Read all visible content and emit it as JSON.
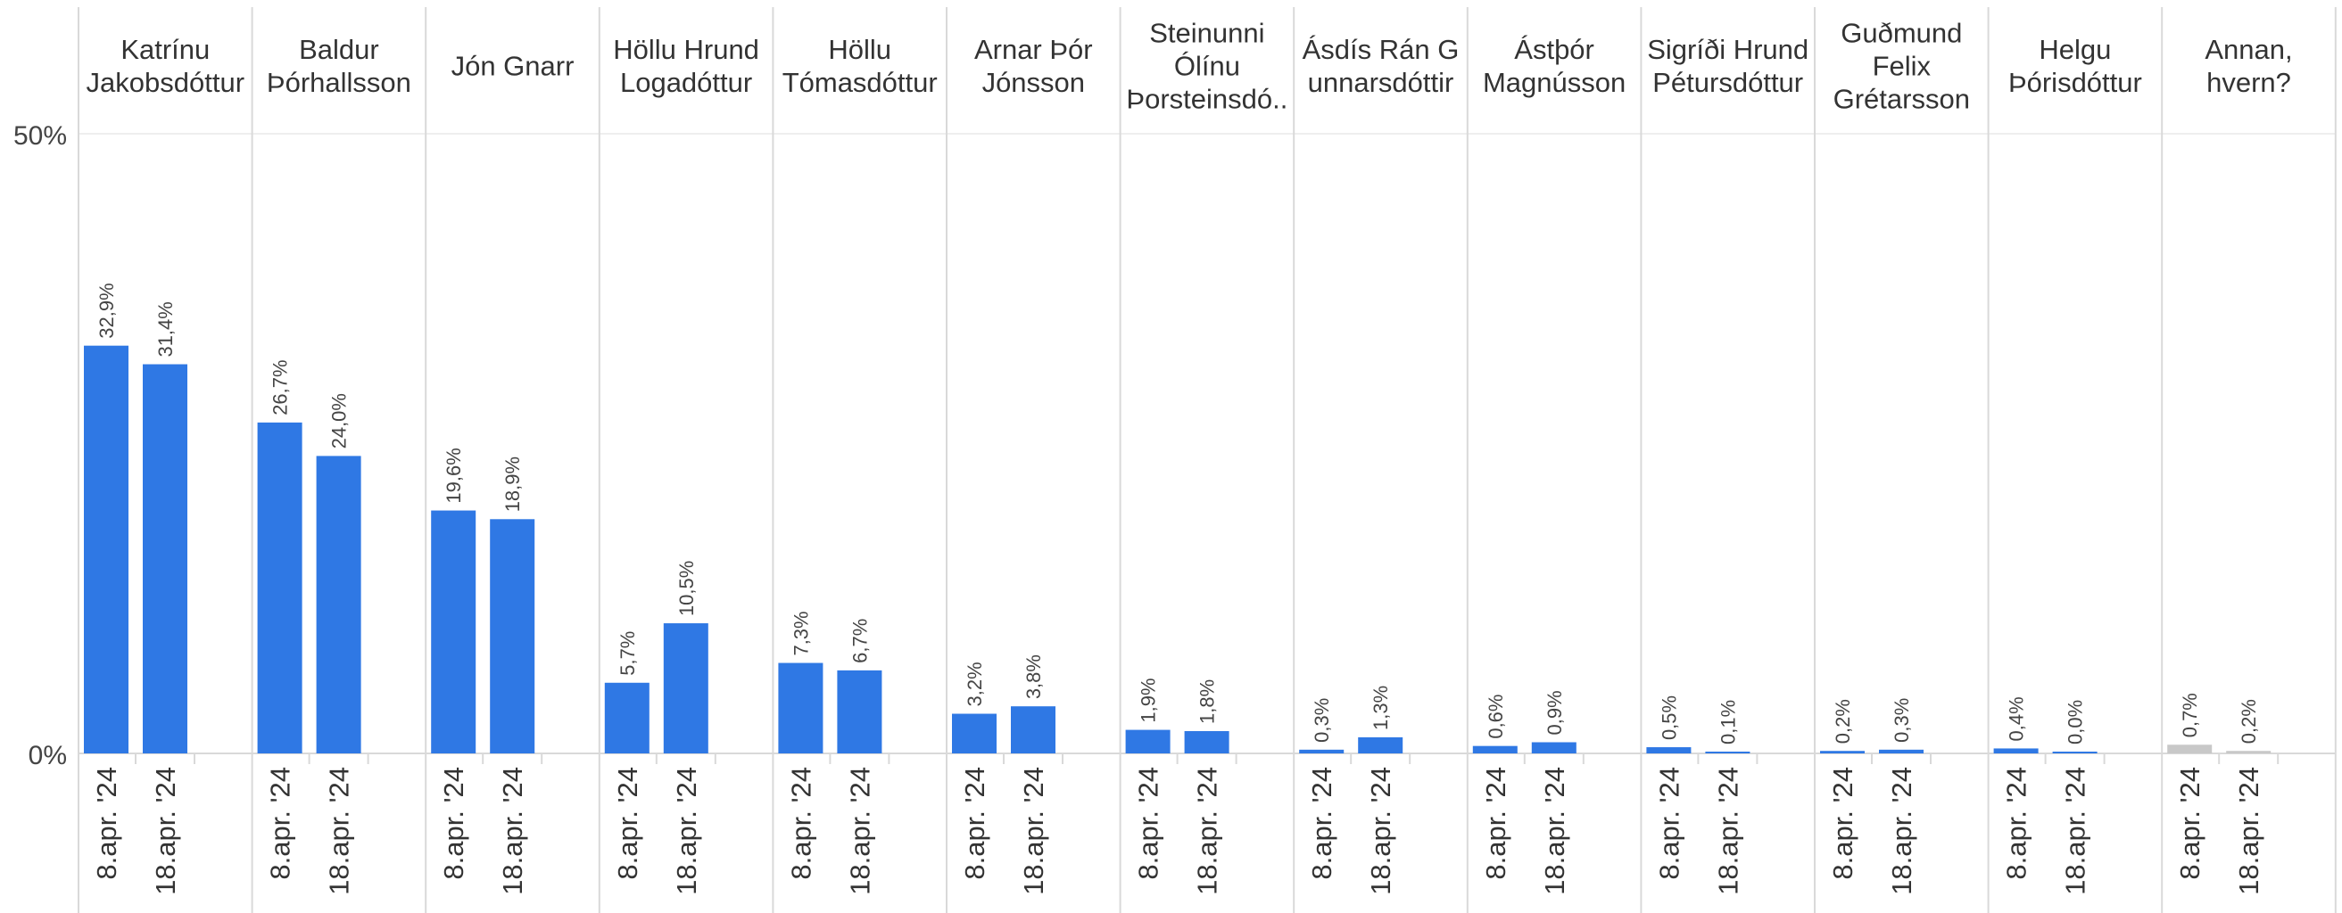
{
  "chart_data": {
    "type": "bar",
    "y_axis": {
      "min": 0,
      "max": 50,
      "tick_labels": [
        "50%",
        "0%"
      ]
    },
    "dates": [
      "8.apr. '24",
      "18.apr. '24"
    ],
    "colors": {
      "bar": "#2f78e4",
      "bar_other": "#c8c8c8",
      "divider": "#d9d9d9",
      "header_text": "#333333"
    },
    "candidates": [
      {
        "name_lines": [
          "Katrínu",
          "Jakobsdóttur"
        ],
        "values": [
          32.9,
          31.4
        ],
        "labels": [
          "32,9%",
          "31,4%"
        ]
      },
      {
        "name_lines": [
          "Baldur",
          "Þórhallsson"
        ],
        "values": [
          26.7,
          24.0
        ],
        "labels": [
          "26,7%",
          "24,0%"
        ]
      },
      {
        "name_lines": [
          "Jón Gnarr"
        ],
        "values": [
          19.6,
          18.9
        ],
        "labels": [
          "19,6%",
          "18,9%"
        ]
      },
      {
        "name_lines": [
          "Höllu Hrund",
          "Logadóttur"
        ],
        "values": [
          5.7,
          10.5
        ],
        "labels": [
          "5,7%",
          "10,5%"
        ]
      },
      {
        "name_lines": [
          "Höllu",
          "Tómasdóttur"
        ],
        "values": [
          7.3,
          6.7
        ],
        "labels": [
          "7,3%",
          "6,7%"
        ]
      },
      {
        "name_lines": [
          "Arnar Þór",
          "Jónsson"
        ],
        "values": [
          3.2,
          3.8
        ],
        "labels": [
          "3,2%",
          "3,8%"
        ]
      },
      {
        "name_lines": [
          "Steinunni",
          "Ólínu",
          "Þorsteinsdó.."
        ],
        "values": [
          1.9,
          1.8
        ],
        "labels": [
          "1,9%",
          "1,8%"
        ]
      },
      {
        "name_lines": [
          "Ásdís Rán G",
          "unnarsdóttir"
        ],
        "values": [
          0.3,
          1.3
        ],
        "labels": [
          "0,3%",
          "1,3%"
        ]
      },
      {
        "name_lines": [
          "Ástþór",
          "Magnússon"
        ],
        "values": [
          0.6,
          0.9
        ],
        "labels": [
          "0,6%",
          "0,9%"
        ]
      },
      {
        "name_lines": [
          "Sigríði Hrund",
          "Pétursdóttur"
        ],
        "values": [
          0.5,
          0.1
        ],
        "labels": [
          "0,5%",
          "0,1%"
        ]
      },
      {
        "name_lines": [
          "Guðmund",
          "Felix",
          "Grétarsson"
        ],
        "values": [
          0.2,
          0.3
        ],
        "labels": [
          "0,2%",
          "0,3%"
        ]
      },
      {
        "name_lines": [
          "Helgu",
          "Þórisdóttur"
        ],
        "values": [
          0.4,
          0.0
        ],
        "labels": [
          "0,4%",
          "0,0%"
        ]
      },
      {
        "name_lines": [
          "Annan,",
          "hvern?"
        ],
        "values": [
          0.7,
          0.2
        ],
        "labels": [
          "0,7%",
          "0,2%"
        ],
        "other": true
      }
    ]
  }
}
